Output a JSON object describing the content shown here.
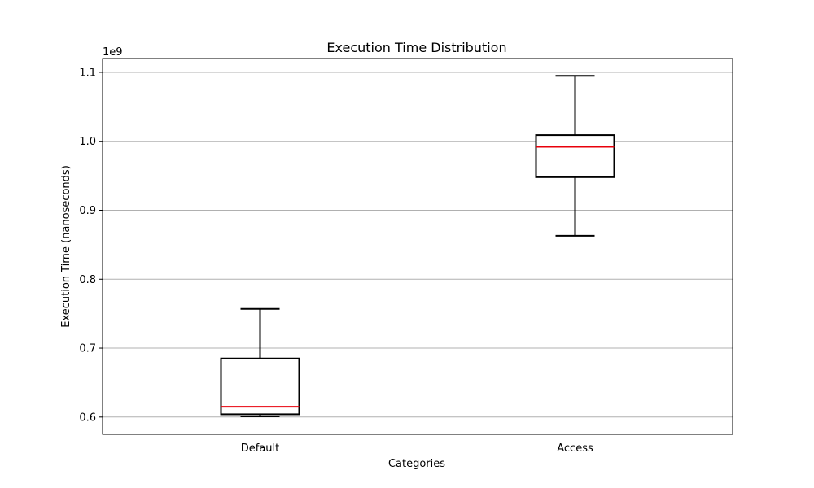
{
  "chart_data": {
    "type": "box",
    "title": "Execution Time Distribution",
    "xlabel": "Categories",
    "ylabel": "Execution Time (nanoseconds)",
    "y_offset_label": "1e9",
    "ylim": [
      0.575,
      1.12
    ],
    "y_scale_factor": 1000000000,
    "yticks": [
      0.6,
      0.7,
      0.8,
      0.9,
      1.0,
      1.1
    ],
    "ytick_labels": [
      "0.6",
      "0.7",
      "0.8",
      "0.9",
      "1.0",
      "1.1"
    ],
    "grid": "horizontal",
    "categories": [
      "Default",
      "Access"
    ],
    "boxes": [
      {
        "category": "Default",
        "whisker_low": 0.601,
        "q1": 0.604,
        "median": 0.615,
        "q3": 0.685,
        "whisker_high": 0.757
      },
      {
        "category": "Access",
        "whisker_low": 0.863,
        "q1": 0.948,
        "median": 0.992,
        "q3": 1.009,
        "whisker_high": 1.095
      }
    ],
    "colors": {
      "box": "#000000",
      "median": "#e8000b",
      "grid": "#b0b0b0"
    }
  }
}
